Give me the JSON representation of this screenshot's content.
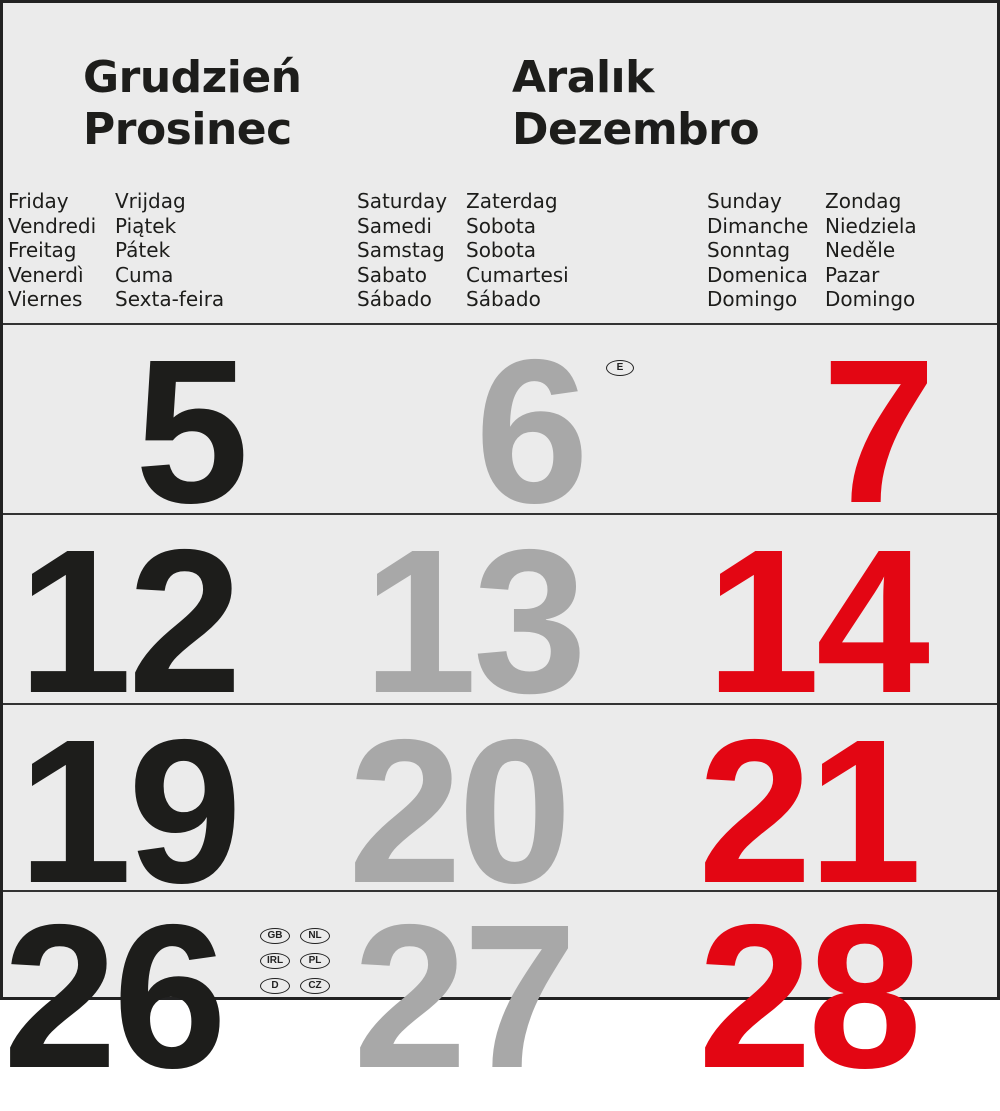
{
  "header": {
    "month_names_left": [
      "Grudzień",
      "Prosinec"
    ],
    "month_names_right": [
      "Aralık",
      "Dezembro"
    ]
  },
  "weekdays": {
    "friday": {
      "col1": [
        "Friday",
        "Vendredi",
        "Freitag",
        "Venerdì",
        "Viernes"
      ],
      "col2": [
        "Vrijdag",
        "Piątek",
        "Pátek",
        "Cuma",
        "Sexta-feira"
      ]
    },
    "saturday": {
      "col1": [
        "Saturday",
        "Samedi",
        "Samstag",
        "Sabato",
        "Sábado"
      ],
      "col2": [
        "Zaterdag",
        "Sobota",
        "Sobota",
        "Cumartesi",
        "Sábado"
      ]
    },
    "sunday": {
      "col1": [
        "Sunday",
        "Dimanche",
        "Sonntag",
        "Domenica",
        "Domingo"
      ],
      "col2": [
        "Zondag",
        "Niedziela",
        "Neděle",
        "Pazar",
        "Domingo"
      ]
    }
  },
  "rows": [
    {
      "fri": "5",
      "sat": "6",
      "sun": "7"
    },
    {
      "fri": "12",
      "sat": "13",
      "sun": "14"
    },
    {
      "fri": "19",
      "sat": "20",
      "sun": "21"
    },
    {
      "fri": "26",
      "sat": "27",
      "sun": "28"
    }
  ],
  "holiday_badges": {
    "day6": [
      "E"
    ],
    "day26": [
      "GB",
      "NL",
      "IRL",
      "PL",
      "D",
      "CZ"
    ]
  },
  "colors": {
    "weekday": "#1d1d1b",
    "saturday": "#a8a8a8",
    "sunday": "#e30613",
    "background": "#ebebeb"
  }
}
